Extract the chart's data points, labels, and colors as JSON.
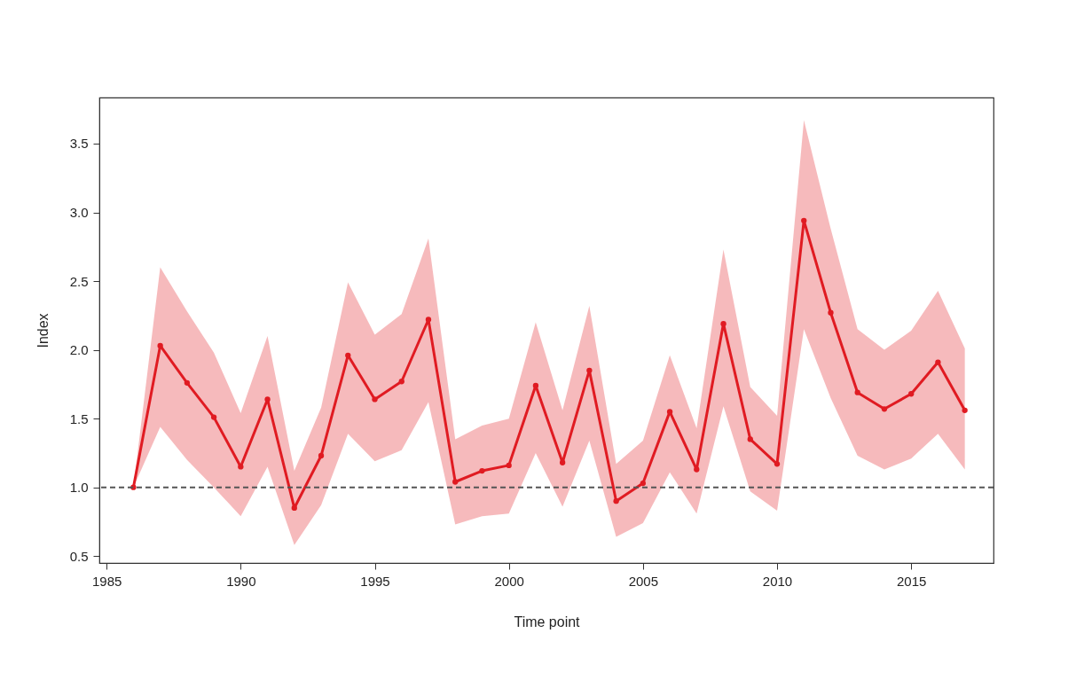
{
  "chart_data": {
    "type": "line",
    "xlabel": "Time point",
    "ylabel": "Index",
    "x": [
      1986,
      1987,
      1988,
      1989,
      1990,
      1991,
      1992,
      1993,
      1994,
      1995,
      1996,
      1997,
      1998,
      1999,
      2000,
      2001,
      2002,
      2003,
      2004,
      2005,
      2006,
      2007,
      2008,
      2009,
      2010,
      2011,
      2012,
      2013,
      2014,
      2015,
      2016,
      2017
    ],
    "series": [
      {
        "color": "#e01b22",
        "values": [
          1.0,
          2.03,
          1.76,
          1.51,
          1.15,
          1.64,
          0.85,
          1.23,
          1.96,
          1.64,
          1.77,
          2.22,
          1.04,
          1.12,
          1.16,
          1.74,
          1.18,
          1.85,
          0.9,
          1.03,
          1.55,
          1.13,
          2.19,
          1.35,
          1.17,
          2.94,
          2.27,
          1.69,
          1.57,
          1.68,
          1.91,
          1.56
        ],
        "lower": [
          1.0,
          1.44,
          1.2,
          1.0,
          0.79,
          1.15,
          0.58,
          0.87,
          1.39,
          1.19,
          1.27,
          1.62,
          0.73,
          0.79,
          0.81,
          1.25,
          0.86,
          1.34,
          0.64,
          0.74,
          1.11,
          0.81,
          1.59,
          0.97,
          0.83,
          2.15,
          1.65,
          1.23,
          1.13,
          1.21,
          1.39,
          1.13
        ],
        "upper": [
          1.0,
          2.6,
          2.28,
          1.98,
          1.54,
          2.1,
          1.12,
          1.58,
          2.49,
          2.11,
          2.26,
          2.81,
          1.35,
          1.45,
          1.5,
          2.2,
          1.56,
          2.32,
          1.17,
          1.34,
          1.96,
          1.43,
          2.73,
          1.73,
          1.52,
          3.67,
          2.88,
          2.15,
          2.0,
          2.14,
          2.43,
          2.01
        ]
      }
    ],
    "xlim": [
      1984.73,
      2018.07
    ],
    "xticks": [
      1985,
      1990,
      1995,
      2000,
      2005,
      2010,
      2015
    ],
    "ylim": [
      0.45,
      3.835
    ],
    "yticks": [
      0.5,
      {
        "value": 1,
        "label": "1.0"
      },
      1.5,
      {
        "value": 2,
        "label": "2.0"
      },
      2.5,
      {
        "value": 3,
        "label": "3.0"
      },
      3.5
    ],
    "ref_lines": [
      {
        "axis": "y",
        "value": 1.0,
        "color": "#555555",
        "line_style": "dashed"
      }
    ],
    "grid": false,
    "marker": "circle",
    "line_style": "solid"
  }
}
